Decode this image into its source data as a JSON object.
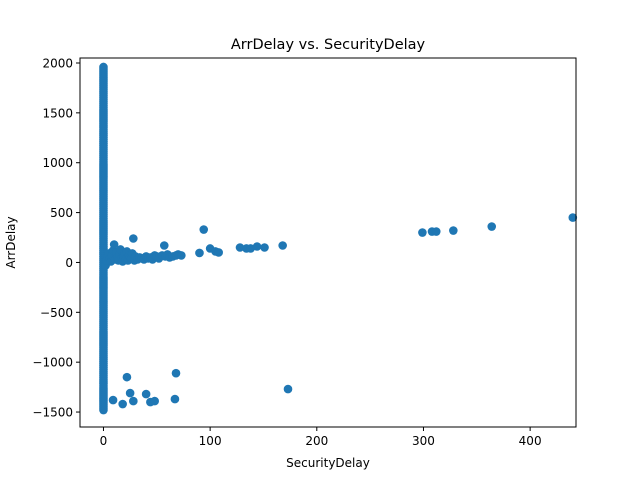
{
  "chart_data": {
    "type": "scatter",
    "title": "ArrDelay vs. SecurityDelay",
    "xlabel": "SecurityDelay",
    "ylabel": "ArrDelay",
    "xlim": [
      -22,
      443
    ],
    "ylim": [
      -1650,
      2050
    ],
    "xticks": [
      0,
      100,
      200,
      300,
      400
    ],
    "yticks": [
      -1500,
      -1000,
      -500,
      0,
      500,
      1000,
      1500,
      2000
    ],
    "xtick_labels": [
      "0",
      "100",
      "200",
      "300",
      "400"
    ],
    "ytick_labels": [
      "−1500",
      "−1000",
      "−500",
      "0",
      "500",
      "1000",
      "1500",
      "2000"
    ],
    "grid": false,
    "color": "#1f77b4",
    "dense_band": {
      "x": 0,
      "y_from": -1480,
      "y_to": 1960
    },
    "points": [
      [
        2,
        -30
      ],
      [
        3,
        20
      ],
      [
        4,
        60
      ],
      [
        5,
        90
      ],
      [
        6,
        40
      ],
      [
        7,
        10
      ],
      [
        8,
        70
      ],
      [
        9,
        120
      ],
      [
        10,
        180
      ],
      [
        11,
        30
      ],
      [
        12,
        100
      ],
      [
        13,
        50
      ],
      [
        14,
        20
      ],
      [
        15,
        80
      ],
      [
        16,
        130
      ],
      [
        17,
        40
      ],
      [
        18,
        10
      ],
      [
        19,
        60
      ],
      [
        20,
        90
      ],
      [
        21,
        30
      ],
      [
        22,
        110
      ],
      [
        23,
        20
      ],
      [
        24,
        70
      ],
      [
        25,
        50
      ],
      [
        26,
        40
      ],
      [
        27,
        90
      ],
      [
        28,
        240
      ],
      [
        29,
        20
      ],
      [
        30,
        60
      ],
      [
        32,
        30
      ],
      [
        34,
        50
      ],
      [
        36,
        40
      ],
      [
        38,
        30
      ],
      [
        40,
        60
      ],
      [
        42,
        40
      ],
      [
        44,
        50
      ],
      [
        46,
        30
      ],
      [
        48,
        70
      ],
      [
        50,
        60
      ],
      [
        52,
        40
      ],
      [
        55,
        70
      ],
      [
        57,
        170
      ],
      [
        58,
        60
      ],
      [
        60,
        80
      ],
      [
        62,
        50
      ],
      [
        65,
        60
      ],
      [
        68,
        70
      ],
      [
        70,
        80
      ],
      [
        73,
        70
      ],
      [
        90,
        95
      ],
      [
        94,
        330
      ],
      [
        100,
        140
      ],
      [
        105,
        110
      ],
      [
        108,
        100
      ],
      [
        128,
        150
      ],
      [
        134,
        140
      ],
      [
        138,
        140
      ],
      [
        144,
        160
      ],
      [
        151,
        150
      ],
      [
        168,
        170
      ],
      [
        299,
        300
      ],
      [
        308,
        310
      ],
      [
        312,
        310
      ],
      [
        328,
        320
      ],
      [
        364,
        360
      ],
      [
        440,
        450
      ],
      [
        9,
        -1380
      ],
      [
        18,
        -1420
      ],
      [
        22,
        -1150
      ],
      [
        25,
        -1310
      ],
      [
        28,
        -1390
      ],
      [
        40,
        -1320
      ],
      [
        44,
        -1400
      ],
      [
        48,
        -1390
      ],
      [
        67,
        -1370
      ],
      [
        68,
        -1110
      ],
      [
        173,
        -1270
      ]
    ]
  }
}
